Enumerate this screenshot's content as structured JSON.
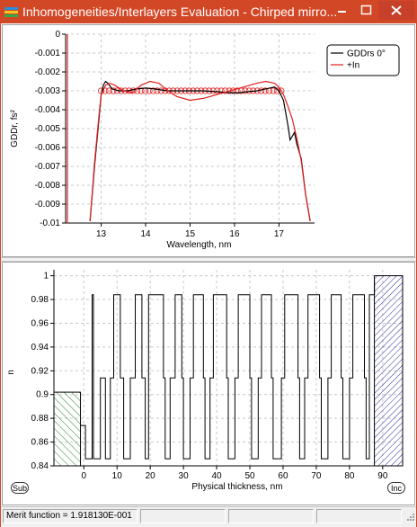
{
  "window": {
    "title": "Inhomogeneities/Interlayers Evaluation - Chirped mirro..."
  },
  "titlebar_buttons": {
    "minimize": "–",
    "maximize": "□",
    "close": "✕"
  },
  "colors": {
    "titlebar": "#d24726",
    "series_black": "#000000",
    "series_red": "#e02020",
    "substrate_hatch": "#3a8a3a",
    "incident_hatch": "#2a2aa0"
  },
  "icons": {
    "app": "colored-bars-icon",
    "minimize": "minimize-icon",
    "maximize": "maximize-icon",
    "close": "close-icon"
  },
  "chart_data": [
    {
      "type": "line",
      "title": "",
      "xlabel": "Wavelength, nm",
      "ylabel": "GDDr, fs²",
      "xlim": [
        12.2,
        17.8
      ],
      "ylim": [
        -0.01,
        0
      ],
      "xticks": [
        "13",
        "14",
        "15",
        "16",
        "17"
      ],
      "yticks": [
        "0",
        "-0.001",
        "-0.002",
        "-0.003",
        "-0.004",
        "-0.005",
        "-0.006",
        "-0.007",
        "-0.008",
        "-0.009",
        "-0.01"
      ],
      "grid": true,
      "legend": "top-right",
      "series": [
        {
          "name": "GDDrs 0°",
          "color": "#000000",
          "x": [
            12.75,
            12.85,
            12.95,
            13.0,
            13.05,
            13.1,
            13.15,
            13.25,
            13.4,
            13.6,
            13.8,
            14.0,
            14.2,
            14.5,
            14.8,
            15.0,
            15.3,
            15.6,
            15.9,
            16.1,
            16.3,
            16.5,
            16.7,
            16.9,
            17.0,
            17.1,
            17.2,
            17.25,
            17.3,
            17.35,
            17.4,
            17.5,
            17.6,
            17.7
          ],
          "y": [
            -0.0099,
            -0.007,
            -0.0045,
            -0.0032,
            -0.0027,
            -0.0025,
            -0.0026,
            -0.0029,
            -0.003,
            -0.003,
            -0.0029,
            -0.00285,
            -0.0029,
            -0.003,
            -0.003,
            -0.003,
            -0.003,
            -0.00305,
            -0.0031,
            -0.0031,
            -0.00305,
            -0.003,
            -0.0029,
            -0.0028,
            -0.003,
            -0.0035,
            -0.0048,
            -0.0056,
            -0.0054,
            -0.0052,
            -0.0058,
            -0.0066,
            -0.0085,
            -0.0099
          ]
        },
        {
          "name": "+In",
          "color": "#e02020",
          "x": [
            12.75,
            12.85,
            12.95,
            13.0,
            13.1,
            13.2,
            13.3,
            13.5,
            13.7,
            13.9,
            14.1,
            14.3,
            14.5,
            14.7,
            15.0,
            15.3,
            15.6,
            15.9,
            16.2,
            16.5,
            16.7,
            16.9,
            17.0,
            17.1,
            17.2,
            17.3,
            17.4,
            17.5,
            17.6,
            17.7
          ],
          "y": [
            -0.0099,
            -0.0068,
            -0.0043,
            -0.0032,
            -0.0027,
            -0.0026,
            -0.0027,
            -0.003,
            -0.0031,
            -0.0027,
            -0.0025,
            -0.0026,
            -0.003,
            -0.0033,
            -0.0035,
            -0.0034,
            -0.0032,
            -0.003,
            -0.0028,
            -0.0026,
            -0.0025,
            -0.0026,
            -0.0028,
            -0.0032,
            -0.0038,
            -0.0045,
            -0.0055,
            -0.0067,
            -0.0085,
            -0.0099
          ]
        }
      ],
      "target_markers": {
        "color": "#e02020",
        "x_range": [
          13.0,
          17.05
        ],
        "y": -0.003
      }
    },
    {
      "type": "line",
      "title": "",
      "xlabel": "Physical thickness, nm",
      "ylabel": "n",
      "xlim": [
        -9,
        96
      ],
      "ylim": [
        0.84,
        1.005
      ],
      "xticks": [
        "0",
        "10",
        "20",
        "30",
        "40",
        "50",
        "60",
        "70",
        "80",
        "90"
      ],
      "yticks": [
        "1",
        "0.98",
        "0.96",
        "0.94",
        "0.92",
        "0.9",
        "0.88",
        "0.86",
        "0.84"
      ],
      "grid": true,
      "substrate": {
        "label": "Sub",
        "x_range": [
          -9,
          -1
        ],
        "n": 0.902
      },
      "incident": {
        "label": "Inc",
        "x_range": [
          87.5,
          96
        ],
        "n": 1.0
      },
      "steps": [
        -1,
        0.874,
        0.5,
        0.846,
        2.5,
        0.984,
        2.9,
        0.846,
        5.0,
        0.914,
        6.5,
        0.846,
        8.0,
        0.914,
        9.0,
        0.984,
        11.0,
        0.914,
        12.0,
        0.846,
        14.0,
        0.914,
        15.5,
        0.984,
        17.5,
        0.914,
        18.5,
        0.846,
        19.5,
        0.984,
        24.0,
        0.914,
        24.5,
        0.846,
        26.0,
        0.914,
        27.5,
        0.984,
        29.5,
        0.914,
        30.0,
        0.846,
        32.0,
        0.914,
        33.0,
        0.984,
        36.0,
        0.914,
        36.5,
        0.846,
        38.0,
        0.914,
        39.0,
        0.984,
        43.0,
        0.914,
        43.5,
        0.846,
        45.5,
        0.914,
        46.5,
        0.984,
        50.0,
        0.914,
        50.5,
        0.846,
        52.5,
        0.914,
        53.5,
        0.984,
        56.5,
        0.914,
        57.0,
        0.846,
        59.5,
        0.914,
        60.5,
        0.984,
        64.5,
        0.914,
        65.0,
        0.846,
        66.5,
        0.914,
        67.5,
        0.984,
        71.0,
        0.914,
        71.5,
        0.846,
        73.5,
        0.914,
        74.5,
        0.984,
        77.5,
        0.914,
        78.0,
        0.846,
        80.0,
        0.914,
        81.0,
        0.984,
        84.5,
        0.914,
        85.0,
        0.846,
        86.0,
        0.914,
        86.0,
        0.984,
        87.5,
        0.99,
        87.5,
        0.996
      ]
    }
  ],
  "buttons": {
    "sub": "Sub",
    "inc": "Inc"
  },
  "status": {
    "merit": "Merit function = 1.918130E-001"
  }
}
